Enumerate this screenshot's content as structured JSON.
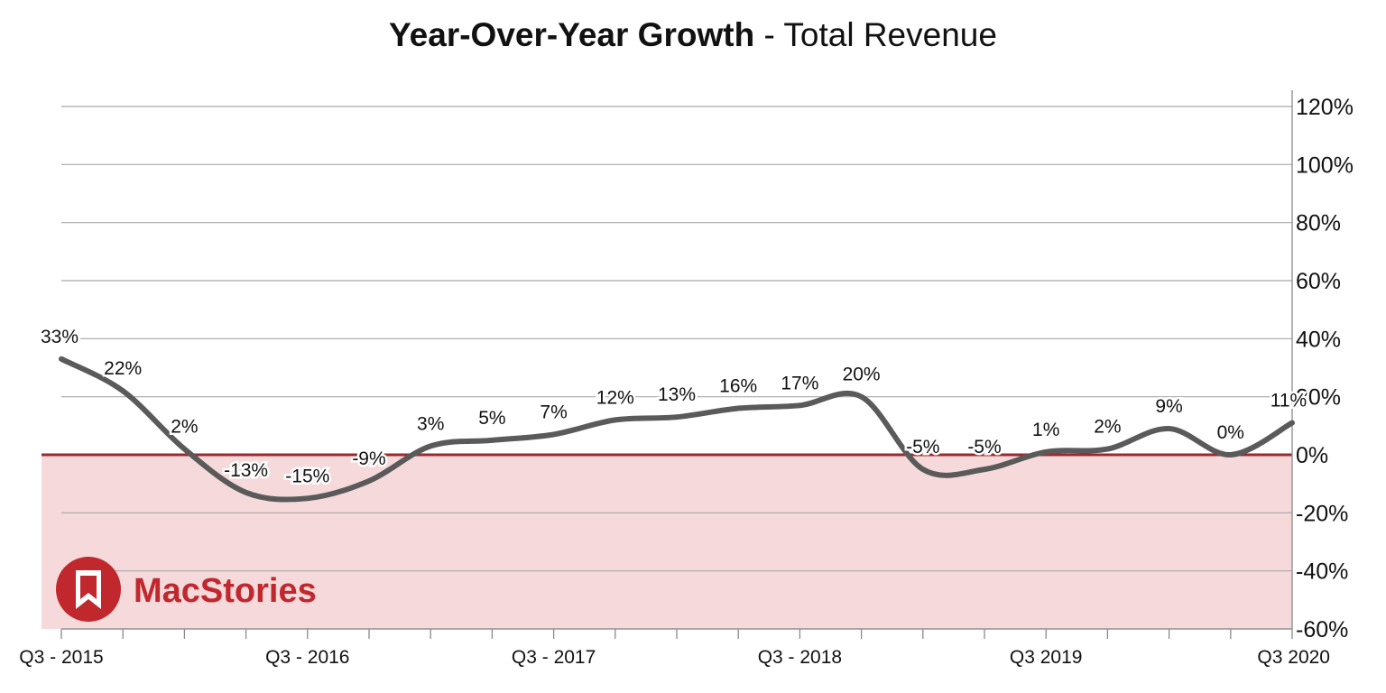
{
  "chart_data": {
    "type": "line",
    "title": "Year-Over-Year Growth",
    "subtitle": "Total Revenue",
    "title_separator": "-",
    "xlabel": "",
    "ylabel": "",
    "ylim": [
      -60,
      120
    ],
    "y_ticks": [
      -60,
      -40,
      -20,
      0,
      20,
      40,
      60,
      80,
      100,
      120
    ],
    "y_tick_labels": [
      "-60%",
      "-40%",
      "-20%",
      "0%",
      "20%",
      "40%",
      "60%",
      "80%",
      "100%",
      "120%"
    ],
    "y_axis_position": "right",
    "grid": true,
    "x_tick_labels": [
      {
        "index": 0,
        "label": "Q3 - 2015"
      },
      {
        "index": 4,
        "label": "Q3 - 2016"
      },
      {
        "index": 8,
        "label": "Q3 - 2017"
      },
      {
        "index": 12,
        "label": "Q3 - 2018"
      },
      {
        "index": 16,
        "label": "Q3 2019"
      },
      {
        "index": 20,
        "label": "Q3 2020"
      }
    ],
    "series": [
      {
        "values": [
          33,
          22,
          2,
          -13,
          -15,
          -9,
          3,
          5,
          7,
          12,
          13,
          16,
          17,
          20,
          -5,
          -5,
          1,
          2,
          9,
          0,
          11
        ],
        "labels": [
          "33%",
          "22%",
          "2%",
          "-13%",
          "-15%",
          "-9%",
          "3%",
          "5%",
          "7%",
          "12%",
          "13%",
          "16%",
          "17%",
          "20%",
          "-5%",
          "-5%",
          "1%",
          "2%",
          "9%",
          "0%",
          "11%"
        ],
        "color": "#5a5a5a"
      }
    ],
    "negative_region_color": "#f6d9db",
    "zero_line_color": "#9b2a2f"
  },
  "watermark": {
    "text": "MacStories",
    "color": "#c0282d"
  }
}
